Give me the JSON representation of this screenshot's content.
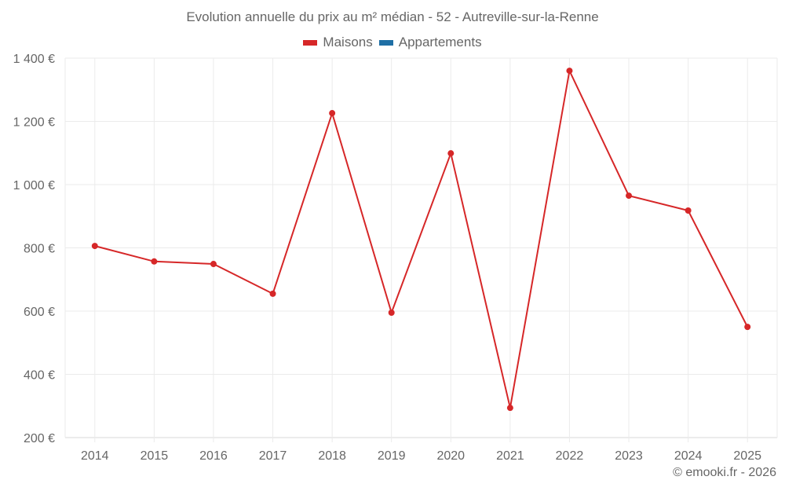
{
  "chart": {
    "title": "Evolution annuelle du prix au m² médian - 52 - Autreville-sur-la-Renne",
    "legend": [
      {
        "label": "Maisons",
        "color": "#d62728"
      },
      {
        "label": "Appartements",
        "color": "#1f6fa5"
      }
    ],
    "watermark": "© emooki.fr - 2026"
  },
  "chart_data": {
    "type": "line",
    "title": "Evolution annuelle du prix au m² médian - 52 - Autreville-sur-la-Renne",
    "xlabel": "",
    "ylabel": "",
    "categories": [
      "2014",
      "2015",
      "2016",
      "2017",
      "2018",
      "2019",
      "2020",
      "2021",
      "2022",
      "2023",
      "2024",
      "2025"
    ],
    "series": [
      {
        "name": "Maisons",
        "color": "#d62728",
        "values": [
          806,
          757,
          749,
          655,
          1226,
          595,
          1099,
          294,
          1360,
          965,
          918,
          550
        ]
      },
      {
        "name": "Appartements",
        "color": "#1f6fa5",
        "values": []
      }
    ],
    "ylim": [
      200,
      1400
    ],
    "yticks": [
      200,
      400,
      600,
      800,
      1000,
      1200,
      1400
    ],
    "ytick_labels": [
      "200 €",
      "400 €",
      "600 €",
      "800 €",
      "1 000 €",
      "1 200 €",
      "1 400 €"
    ],
    "grid": true,
    "legend_position": "top"
  }
}
